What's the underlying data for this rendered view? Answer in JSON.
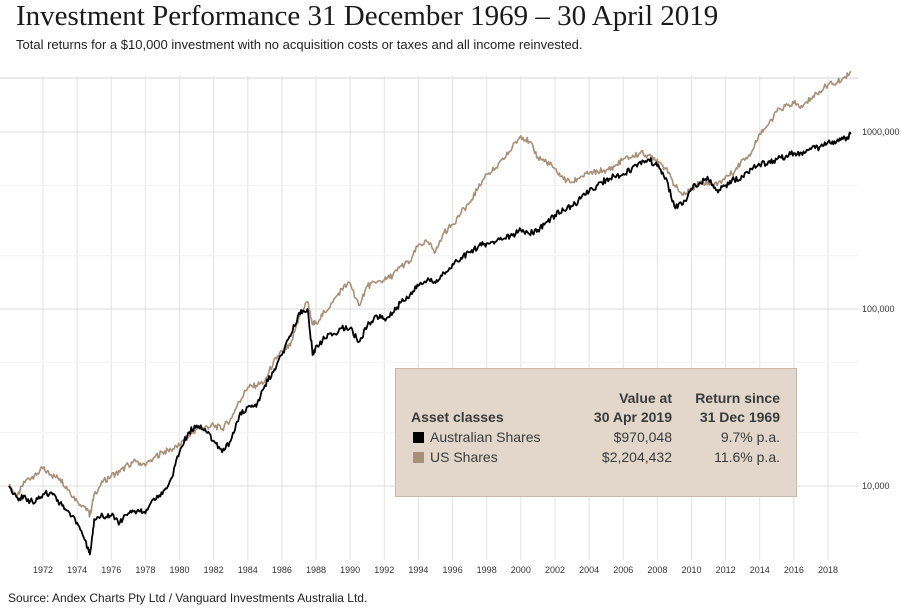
{
  "title": "Investment Performance 31 December 1969 – 30 April 2019",
  "subtitle": "Total returns for a $10,000 investment with no acquisition costs or taxes and all income reinvested.",
  "source": "Source: Andex Charts Pty Ltd / Vanguard Investments Australia Ltd.",
  "chart_data": {
    "type": "line",
    "title": "Investment Performance 31 December 1969 – 30 April 2019",
    "xlabel": "",
    "ylabel": "",
    "y_scale": "log",
    "ylim": [
      5000,
      2500000
    ],
    "xlim": [
      1969.9,
      2019.4
    ],
    "x_ticks": [
      "1972",
      "1974",
      "1976",
      "1978",
      "1980",
      "1982",
      "1984",
      "1986",
      "1988",
      "1990",
      "1992",
      "1994",
      "1996",
      "1998",
      "2000",
      "2002",
      "2004",
      "2006",
      "2008",
      "2010",
      "2012",
      "2014",
      "2016",
      "2018"
    ],
    "y_ticks": [
      {
        "value": 10000,
        "label": "10,000"
      },
      {
        "value": 100000,
        "label": "100,000"
      },
      {
        "value": 1000000,
        "label": "1000,000"
      }
    ],
    "grid": true,
    "legend_placement": "bottom-right",
    "series": [
      {
        "name": "US Shares",
        "color": "#a89078",
        "x": [
          1970.0,
          1970.5,
          1971.0,
          1971.5,
          1972.0,
          1972.5,
          1973.0,
          1973.5,
          1974.0,
          1974.5,
          1974.75,
          1975.0,
          1975.5,
          1976.0,
          1976.5,
          1977.0,
          1977.5,
          1978.0,
          1978.5,
          1979.0,
          1979.5,
          1980.0,
          1980.5,
          1981.0,
          1981.5,
          1982.0,
          1982.5,
          1983.0,
          1983.5,
          1984.0,
          1984.5,
          1985.0,
          1985.5,
          1986.0,
          1986.5,
          1987.0,
          1987.5,
          1987.8,
          1988.0,
          1988.5,
          1989.0,
          1989.5,
          1990.0,
          1990.5,
          1991.0,
          1991.5,
          1992.0,
          1992.5,
          1993.0,
          1993.5,
          1994.0,
          1994.5,
          1995.0,
          1995.5,
          1996.0,
          1996.5,
          1997.0,
          1997.5,
          1998.0,
          1998.5,
          1999.0,
          1999.5,
          2000.0,
          2000.5,
          2001.0,
          2001.5,
          2002.0,
          2002.5,
          2003.0,
          2003.5,
          2004.0,
          2004.5,
          2005.0,
          2005.5,
          2006.0,
          2006.5,
          2007.0,
          2007.5,
          2008.0,
          2008.5,
          2009.0,
          2009.5,
          2010.0,
          2010.5,
          2011.0,
          2011.5,
          2012.0,
          2012.5,
          2013.0,
          2013.5,
          2014.0,
          2014.5,
          2015.0,
          2015.5,
          2016.0,
          2016.5,
          2017.0,
          2017.5,
          2018.0,
          2018.5,
          2019.0,
          2019.33
        ],
        "y": [
          10000,
          8800,
          10800,
          11500,
          12500,
          11500,
          11000,
          9500,
          8200,
          7600,
          6800,
          9000,
          10500,
          11500,
          12000,
          13200,
          13800,
          13000,
          14500,
          15500,
          16000,
          17000,
          19000,
          21000,
          21500,
          22000,
          21000,
          24000,
          30000,
          36000,
          37000,
          39000,
          50000,
          58000,
          62000,
          90000,
          110000,
          82000,
          84000,
          96000,
          110000,
          130000,
          140000,
          105000,
          135000,
          140000,
          145000,
          155000,
          175000,
          185000,
          230000,
          240000,
          210000,
          270000,
          300000,
          350000,
          400000,
          480000,
          580000,
          620000,
          700000,
          820000,
          950000,
          880000,
          720000,
          680000,
          620000,
          540000,
          520000,
          560000,
          580000,
          600000,
          610000,
          640000,
          700000,
          720000,
          760000,
          740000,
          700000,
          620000,
          500000,
          440000,
          480000,
          520000,
          520000,
          500000,
          560000,
          590000,
          700000,
          760000,
          980000,
          1100000,
          1300000,
          1400000,
          1450000,
          1380000,
          1550000,
          1700000,
          1850000,
          1900000,
          2050000,
          2204432
        ]
      },
      {
        "name": "Australian Shares",
        "color": "#000000",
        "x": [
          1970.0,
          1970.5,
          1971.0,
          1971.5,
          1972.0,
          1972.5,
          1973.0,
          1973.5,
          1974.0,
          1974.5,
          1974.75,
          1975.0,
          1975.5,
          1976.0,
          1976.5,
          1977.0,
          1977.5,
          1978.0,
          1978.5,
          1979.0,
          1979.5,
          1980.0,
          1980.5,
          1981.0,
          1981.5,
          1982.0,
          1982.5,
          1983.0,
          1983.5,
          1984.0,
          1984.5,
          1985.0,
          1985.5,
          1986.0,
          1986.5,
          1987.0,
          1987.5,
          1987.8,
          1988.0,
          1988.5,
          1989.0,
          1989.5,
          1990.0,
          1990.5,
          1991.0,
          1991.5,
          1992.0,
          1992.5,
          1993.0,
          1993.5,
          1994.0,
          1994.5,
          1995.0,
          1995.5,
          1996.0,
          1996.5,
          1997.0,
          1997.5,
          1998.0,
          1998.5,
          1999.0,
          1999.5,
          2000.0,
          2000.5,
          2001.0,
          2001.5,
          2002.0,
          2002.5,
          2003.0,
          2003.5,
          2004.0,
          2004.5,
          2005.0,
          2005.5,
          2006.0,
          2006.5,
          2007.0,
          2007.5,
          2008.0,
          2008.5,
          2009.0,
          2009.5,
          2010.0,
          2010.5,
          2011.0,
          2011.5,
          2012.0,
          2012.5,
          2013.0,
          2013.5,
          2014.0,
          2014.5,
          2015.0,
          2015.5,
          2016.0,
          2016.5,
          2017.0,
          2017.5,
          2018.0,
          2018.5,
          2019.0,
          2019.33
        ],
        "y": [
          10000,
          8600,
          8500,
          8000,
          9000,
          9200,
          8000,
          7200,
          6200,
          4900,
          4100,
          6500,
          6800,
          6800,
          6200,
          7000,
          7200,
          7000,
          8500,
          9000,
          11000,
          15500,
          20000,
          22000,
          21000,
          18000,
          15500,
          18000,
          25000,
          28000,
          28000,
          37000,
          44000,
          55000,
          70000,
          95000,
          100000,
          55000,
          62000,
          68000,
          72000,
          78000,
          78000,
          65000,
          80000,
          92000,
          88000,
          95000,
          110000,
          120000,
          135000,
          145000,
          140000,
          160000,
          180000,
          195000,
          210000,
          225000,
          235000,
          240000,
          250000,
          260000,
          280000,
          265000,
          280000,
          310000,
          340000,
          360000,
          380000,
          420000,
          460000,
          500000,
          540000,
          560000,
          580000,
          620000,
          680000,
          700000,
          640000,
          550000,
          380000,
          390000,
          480000,
          520000,
          540000,
          470000,
          500000,
          540000,
          560000,
          620000,
          650000,
          680000,
          700000,
          720000,
          760000,
          740000,
          800000,
          820000,
          880000,
          880000,
          920000,
          970048
        ]
      }
    ]
  },
  "legend": {
    "header_col1_line1": "",
    "header_col1_line2": "Asset classes",
    "header_col2_line1": "Value at",
    "header_col2_line2": "30 Apr 2019",
    "header_col3_line1": "Return since",
    "header_col3_line2": "31 Dec 1969",
    "rows": [
      {
        "name": "Australian Shares",
        "value": "$970,048",
        "return": "9.7% p.a.",
        "color": "#000000"
      },
      {
        "name": "US Shares",
        "value": "$2,204,432",
        "return": "11.6% p.a.",
        "color": "#a89078"
      }
    ]
  }
}
